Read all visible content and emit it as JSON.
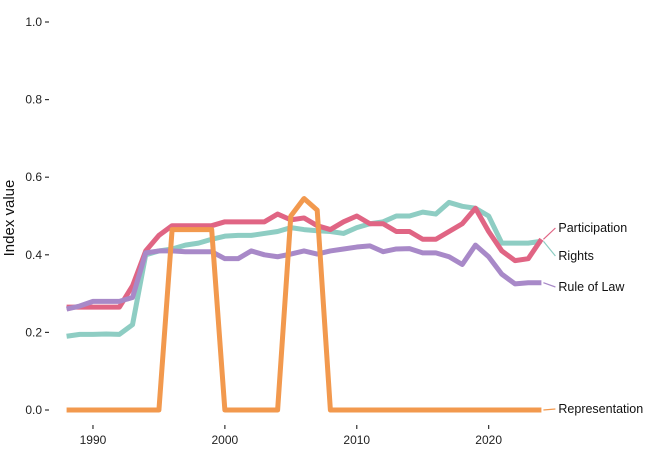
{
  "chart_data": {
    "type": "line",
    "title": "",
    "xlabel": "",
    "ylabel": "Index value",
    "xlim": [
      1987.5,
      2024.5
    ],
    "ylim": [
      0,
      1.0
    ],
    "x_ticks": [
      1990,
      2000,
      2010,
      2020
    ],
    "y_ticks": [
      0.0,
      0.2,
      0.4,
      0.6,
      0.8,
      1.0
    ],
    "y_tick_labels": [
      "0.0",
      "0.2",
      "0.4",
      "0.6",
      "0.8",
      "1.0"
    ],
    "grid": false,
    "legend": "direct labels at right end of lines",
    "x": [
      1988,
      1989,
      1990,
      1991,
      1992,
      1993,
      1994,
      1995,
      1996,
      1997,
      1998,
      1999,
      2000,
      2001,
      2002,
      2003,
      2004,
      2005,
      2006,
      2007,
      2008,
      2009,
      2010,
      2011,
      2012,
      2013,
      2014,
      2015,
      2016,
      2017,
      2018,
      2019,
      2020,
      2021,
      2022,
      2023,
      2024
    ],
    "series": [
      {
        "name": "Rights",
        "color": "#8ecdc3",
        "values": [
          0.19,
          0.195,
          0.195,
          0.196,
          0.195,
          0.22,
          0.4,
          0.41,
          0.415,
          0.425,
          0.43,
          0.44,
          0.448,
          0.45,
          0.45,
          0.455,
          0.46,
          0.47,
          0.465,
          0.462,
          0.46,
          0.455,
          0.47,
          0.48,
          0.485,
          0.5,
          0.5,
          0.51,
          0.505,
          0.535,
          0.525,
          0.52,
          0.5,
          0.43,
          0.43,
          0.43,
          0.435
        ]
      },
      {
        "name": "Participation",
        "color": "#e06584",
        "values": [
          0.265,
          0.265,
          0.265,
          0.265,
          0.265,
          0.32,
          0.41,
          0.45,
          0.475,
          0.475,
          0.475,
          0.475,
          0.485,
          0.485,
          0.485,
          0.485,
          0.505,
          0.49,
          0.495,
          0.475,
          0.465,
          0.485,
          0.5,
          0.48,
          0.48,
          0.46,
          0.46,
          0.44,
          0.44,
          0.46,
          0.48,
          0.52,
          0.46,
          0.41,
          0.385,
          0.39,
          0.44
        ]
      },
      {
        "name": "Rule of Law",
        "color": "#a889c8",
        "values": [
          0.26,
          0.268,
          0.28,
          0.28,
          0.28,
          0.29,
          0.405,
          0.41,
          0.41,
          0.408,
          0.408,
          0.408,
          0.39,
          0.39,
          0.41,
          0.4,
          0.395,
          0.402,
          0.41,
          0.402,
          0.41,
          0.415,
          0.42,
          0.423,
          0.408,
          0.415,
          0.416,
          0.405,
          0.405,
          0.395,
          0.375,
          0.425,
          0.395,
          0.35,
          0.325,
          0.328,
          0.328
        ]
      },
      {
        "name": "Representation",
        "color": "#f2994e",
        "values": [
          0,
          0,
          0,
          0,
          0,
          0,
          0,
          0,
          0.465,
          0.465,
          0.465,
          0.465,
          0,
          0,
          0,
          0,
          0,
          0.5,
          0.545,
          0.515,
          0,
          0,
          0,
          0,
          0,
          0,
          0,
          0,
          0,
          0,
          0,
          0,
          0,
          0,
          0,
          0,
          0
        ]
      }
    ]
  }
}
